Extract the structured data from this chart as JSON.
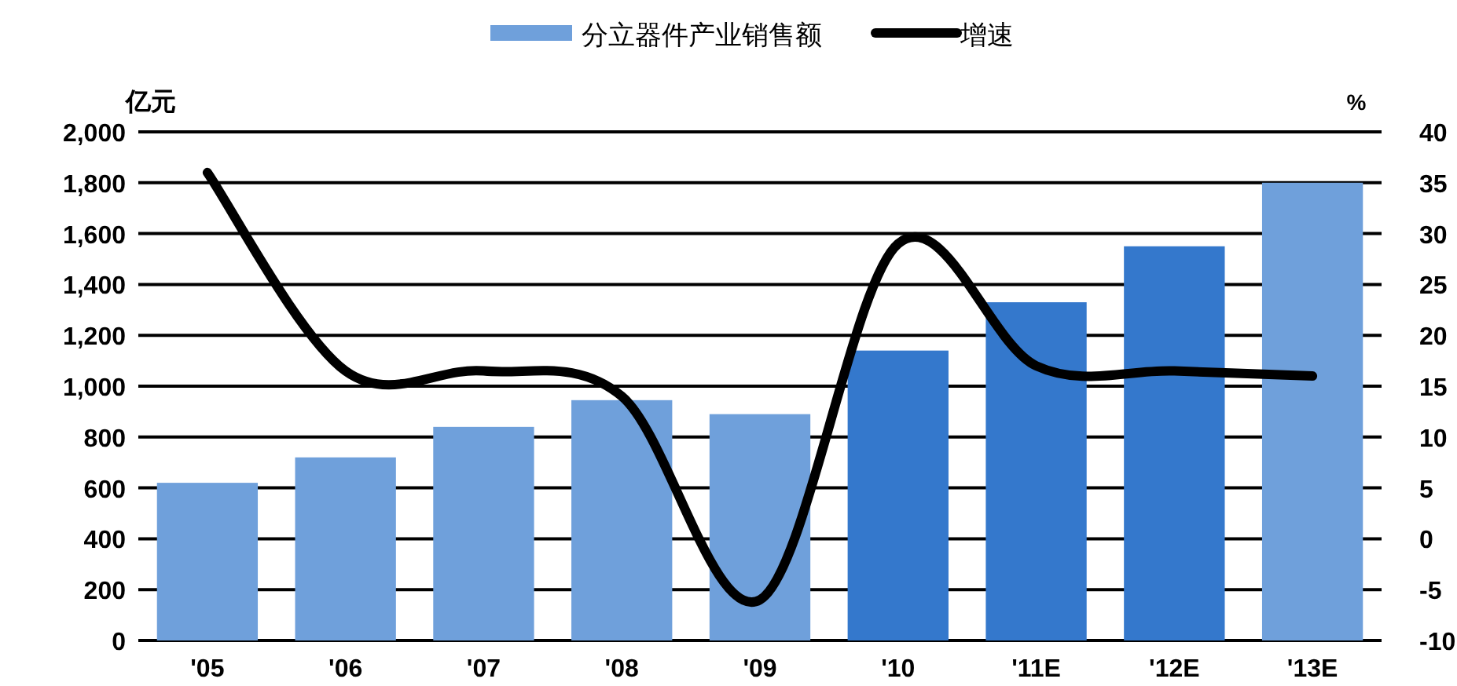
{
  "chart_data": {
    "type": "bar",
    "ylabel": "亿元",
    "y2label": "%",
    "categories": [
      "'05",
      "'06",
      "'07",
      "'08",
      "'09",
      "'10",
      "'11E",
      "'12E",
      "'13E"
    ],
    "series": [
      {
        "name": "分立器件产业销售额",
        "color": "#6fa0db",
        "colors": [
          "#6fa0db",
          "#6fa0db",
          "#6fa0db",
          "#6fa0db",
          "#6fa0db",
          "#3478cc",
          "#3478cc",
          "#3478cc",
          "#6fa0db"
        ],
        "values": [
          620,
          720,
          840,
          945,
          890,
          1140,
          1330,
          1550,
          1800
        ]
      },
      {
        "name": "增速",
        "type": "line",
        "axis": "y2",
        "color": "#000000",
        "values": [
          36,
          16.5,
          16.5,
          14,
          -6,
          29,
          17,
          16.5,
          16
        ]
      }
    ],
    "ylim": [
      0,
      2000
    ],
    "yticks": [
      {
        "value": 0,
        "label": "0"
      },
      {
        "value": 200,
        "label": "200"
      },
      {
        "value": 400,
        "label": "400"
      },
      {
        "value": 600,
        "label": "600"
      },
      {
        "value": 800,
        "label": "800"
      },
      {
        "value": 1000,
        "label": "1,000"
      },
      {
        "value": 1200,
        "label": "1,200"
      },
      {
        "value": 1400,
        "label": "1,400"
      },
      {
        "value": 1600,
        "label": "1,600"
      },
      {
        "value": 1800,
        "label": "1,800"
      },
      {
        "value": 2000,
        "label": "2,000"
      }
    ],
    "y2lim": [
      -10,
      40
    ],
    "y2ticks": [
      -10,
      -5,
      0,
      5,
      10,
      15,
      20,
      25,
      30,
      35,
      40
    ],
    "grid": "y",
    "legend": "top",
    "marker": "none",
    "line_style": "solid"
  }
}
